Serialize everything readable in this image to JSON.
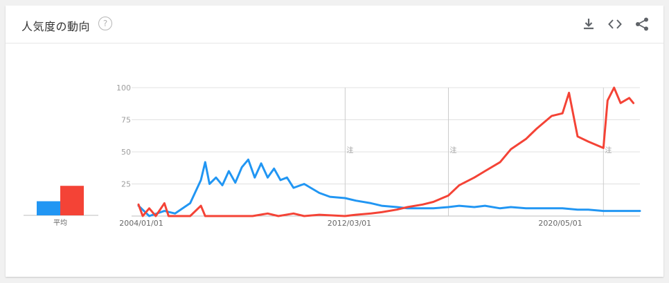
{
  "header": {
    "title": "人気度の動向",
    "help_symbol": "?"
  },
  "icons": {
    "download": "download-icon",
    "embed": "embed-code-icon",
    "share": "share-icon"
  },
  "colors": {
    "series1": "#2196f3",
    "series2": "#f44336",
    "grid": "#e0e0e0"
  },
  "chart_data": {
    "type": "line",
    "y_ticks": [
      25,
      50,
      75,
      100
    ],
    "ylim": [
      0,
      100
    ],
    "x_tick_labels": [
      "2004/01/01",
      "2012/03/01",
      "2020/05/01"
    ],
    "annotation_label": "注",
    "annotation_dates": [
      "2012/01/01",
      "2016/01/01",
      "2022/01/01"
    ],
    "average_label": "平均",
    "average": {
      "series1": 11,
      "series2": 23
    },
    "series": [
      {
        "color": "#2196f3",
        "points": [
          [
            "2004/01/01",
            8
          ],
          [
            "2004/06/01",
            0
          ],
          [
            "2005/01/01",
            4
          ],
          [
            "2005/06/01",
            2
          ],
          [
            "2006/01/01",
            10
          ],
          [
            "2006/06/01",
            28
          ],
          [
            "2006/08/01",
            42
          ],
          [
            "2006/10/01",
            25
          ],
          [
            "2007/01/01",
            30
          ],
          [
            "2007/04/01",
            24
          ],
          [
            "2007/07/01",
            35
          ],
          [
            "2007/10/01",
            26
          ],
          [
            "2008/01/01",
            38
          ],
          [
            "2008/04/01",
            44
          ],
          [
            "2008/07/01",
            30
          ],
          [
            "2008/10/01",
            41
          ],
          [
            "2009/01/01",
            30
          ],
          [
            "2009/04/01",
            37
          ],
          [
            "2009/07/01",
            28
          ],
          [
            "2009/10/01",
            30
          ],
          [
            "2010/01/01",
            22
          ],
          [
            "2010/06/01",
            25
          ],
          [
            "2011/01/01",
            18
          ],
          [
            "2011/06/01",
            15
          ],
          [
            "2012/01/01",
            14
          ],
          [
            "2012/06/01",
            12
          ],
          [
            "2013/01/01",
            10
          ],
          [
            "2013/06/01",
            8
          ],
          [
            "2014/01/01",
            7
          ],
          [
            "2014/06/01",
            6
          ],
          [
            "2015/01/01",
            6
          ],
          [
            "2015/06/01",
            6
          ],
          [
            "2016/01/01",
            7
          ],
          [
            "2016/06/01",
            8
          ],
          [
            "2017/01/01",
            7
          ],
          [
            "2017/06/01",
            8
          ],
          [
            "2018/01/01",
            6
          ],
          [
            "2018/06/01",
            7
          ],
          [
            "2019/01/01",
            6
          ],
          [
            "2019/06/01",
            6
          ],
          [
            "2020/01/01",
            6
          ],
          [
            "2020/06/01",
            6
          ],
          [
            "2021/01/01",
            5
          ],
          [
            "2021/06/01",
            5
          ],
          [
            "2022/01/01",
            4
          ],
          [
            "2022/06/01",
            4
          ],
          [
            "2023/01/01",
            4
          ],
          [
            "2023/06/01",
            4
          ]
        ]
      },
      {
        "color": "#f44336",
        "points": [
          [
            "2004/01/01",
            9
          ],
          [
            "2004/03/01",
            0
          ],
          [
            "2004/06/01",
            6
          ],
          [
            "2004/09/01",
            0
          ],
          [
            "2005/01/01",
            10
          ],
          [
            "2005/03/01",
            0
          ],
          [
            "2006/01/01",
            0
          ],
          [
            "2006/06/01",
            8
          ],
          [
            "2006/08/01",
            0
          ],
          [
            "2008/06/01",
            0
          ],
          [
            "2009/01/01",
            2
          ],
          [
            "2009/06/01",
            0
          ],
          [
            "2010/01/01",
            2
          ],
          [
            "2010/06/01",
            0
          ],
          [
            "2011/01/01",
            1
          ],
          [
            "2012/01/01",
            0
          ],
          [
            "2012/06/01",
            1
          ],
          [
            "2013/01/01",
            2
          ],
          [
            "2013/06/01",
            3
          ],
          [
            "2014/01/01",
            5
          ],
          [
            "2014/06/01",
            7
          ],
          [
            "2015/01/01",
            9
          ],
          [
            "2015/06/01",
            11
          ],
          [
            "2016/01/01",
            16
          ],
          [
            "2016/06/01",
            24
          ],
          [
            "2017/01/01",
            30
          ],
          [
            "2017/06/01",
            35
          ],
          [
            "2018/01/01",
            42
          ],
          [
            "2018/06/01",
            52
          ],
          [
            "2019/01/01",
            60
          ],
          [
            "2019/06/01",
            68
          ],
          [
            "2020/01/01",
            78
          ],
          [
            "2020/06/01",
            80
          ],
          [
            "2020/09/01",
            96
          ],
          [
            "2021/01/01",
            62
          ],
          [
            "2021/06/01",
            58
          ],
          [
            "2022/01/01",
            53
          ],
          [
            "2022/03/01",
            90
          ],
          [
            "2022/06/01",
            100
          ],
          [
            "2022/09/01",
            88
          ],
          [
            "2023/01/01",
            92
          ],
          [
            "2023/03/01",
            88
          ]
        ]
      }
    ]
  }
}
